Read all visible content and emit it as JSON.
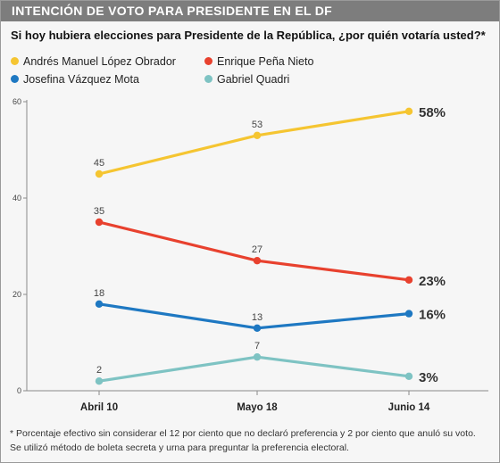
{
  "header": {
    "title": "INTENCIÓN DE VOTO PARA PRESIDENTE EN EL DF"
  },
  "subtitle": "Si hoy hubiera elecciones para Presidente de la República, ¿por quién votaría usted?*",
  "colors": {
    "header_bg": "#7d7d7d",
    "amlo": "#f5c531",
    "epn": "#e8412e",
    "jvm": "#1e78c2",
    "gq": "#7ec3c3"
  },
  "chart_data": {
    "type": "line",
    "x": [
      "Abril 10",
      "Mayo 18",
      "Junio 14"
    ],
    "ylim": [
      0,
      60
    ],
    "yticks": [
      0,
      20,
      40,
      60
    ],
    "grid": false,
    "legend_position": "top-left",
    "series": [
      {
        "name": "Andrés Manuel López Obrador",
        "key": "amlo",
        "values": [
          45,
          53,
          58
        ],
        "point_labels": [
          "45",
          "53",
          "58%"
        ]
      },
      {
        "name": "Enrique Peña Nieto",
        "key": "epn",
        "values": [
          35,
          27,
          23
        ],
        "point_labels": [
          "35",
          "27",
          "23%"
        ]
      },
      {
        "name": "Josefina Vázquez Mota",
        "key": "jvm",
        "values": [
          18,
          13,
          16
        ],
        "point_labels": [
          "18",
          "13",
          "16%"
        ]
      },
      {
        "name": "Gabriel Quadri",
        "key": "gq",
        "values": [
          2,
          7,
          3
        ],
        "point_labels": [
          "2",
          "7",
          "3%"
        ]
      }
    ]
  },
  "footnote": {
    "line1": "* Porcentaje efectivo sin considerar el 12 por ciento que no declaró preferencia y 2 por ciento que anuló su voto.",
    "line2": "Se utilizó método de boleta secreta y urna para preguntar la preferencia electoral."
  }
}
